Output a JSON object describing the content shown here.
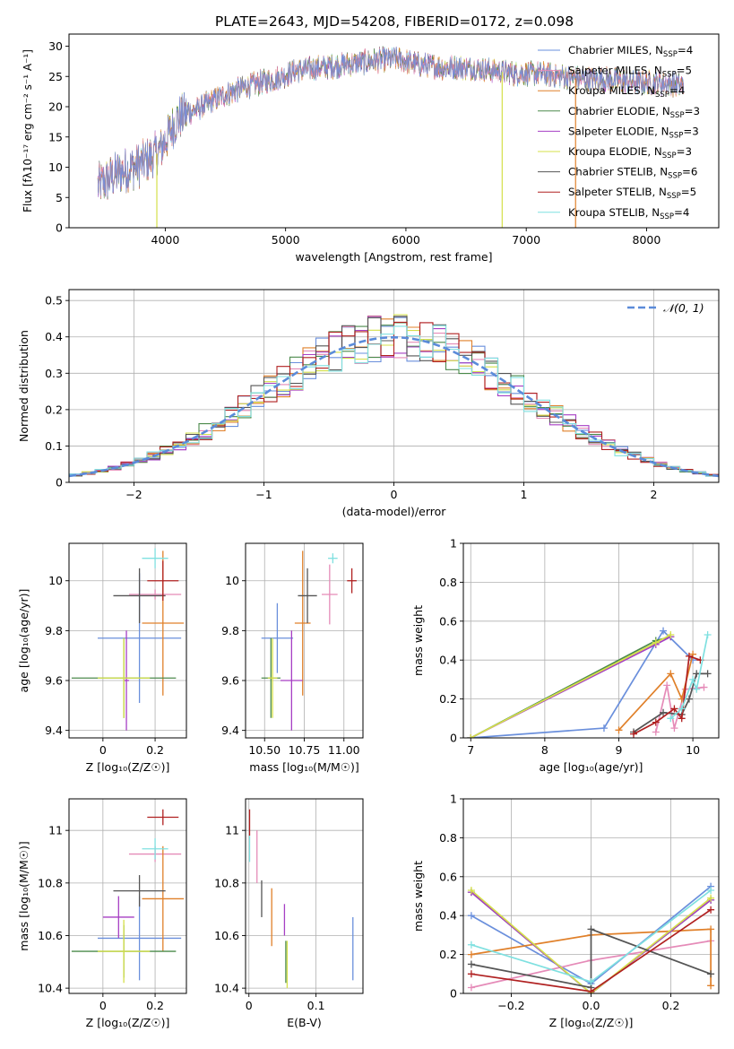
{
  "figure_title": "PLATE=2643, MJD=54208, FIBERID=0172, z=0.098",
  "colors": {
    "Chabrier MILES": "#6a8fdc",
    "Salpeter MILES": "#e58bb8",
    "Kroupa MILES": "#e0802a",
    "Chabrier ELODIE": "#4b8a4b",
    "Salpeter ELODIE": "#a63fc4",
    "Kroupa ELODIE": "#d4e04a",
    "Chabrier STELIB": "#555555",
    "Salpeter STELIB": "#b02020",
    "Kroupa STELIB": "#7fe0e0",
    "gaussian": "#5b8bd9"
  },
  "chart_data": [
    {
      "id": "spectrum",
      "type": "line",
      "xlabel": "wavelength [Angstrom, rest frame]",
      "ylabel": "Flux [fλ10⁻¹⁷ erg cm⁻² s⁻¹ A⁻¹]",
      "xlim": [
        3200,
        8600
      ],
      "ylim": [
        0,
        32
      ],
      "xticks": [
        4000,
        5000,
        6000,
        7000,
        8000
      ],
      "yticks": [
        0,
        5,
        10,
        15,
        20,
        25,
        30
      ],
      "grid": false,
      "legend_position": "top-right",
      "continuum": {
        "x": [
          3450,
          3600,
          3800,
          3950,
          4100,
          4300,
          4500,
          4700,
          4900,
          5100,
          5300,
          5500,
          5700,
          5900,
          6100,
          6300,
          6500,
          6700,
          6900,
          7100,
          7300,
          7500,
          7700,
          7900,
          8100,
          8300
        ],
        "y": [
          7,
          9,
          10.5,
          12.5,
          18,
          20,
          22,
          23.5,
          24.5,
          26,
          26.5,
          27,
          27.5,
          28,
          27,
          26.5,
          26.5,
          26,
          25.5,
          25.5,
          25,
          24.5,
          24.5,
          24,
          24,
          23.5
        ]
      },
      "series": [
        {
          "name": "Chabrier MILES, N$_{SSP}$=4",
          "label_main": "Chabrier MILES, N",
          "label_sub": "SSP",
          "label_tail": "=4"
        },
        {
          "name": "Salpeter MILES, N$_{SSP}$=5",
          "label_main": "Salpeter MILES, N",
          "label_sub": "SSP",
          "label_tail": "=5"
        },
        {
          "name": "Kroupa MILES, N$_{SSP}$=4",
          "label_main": "Kroupa MILES, N",
          "label_sub": "SSP",
          "label_tail": "=4"
        },
        {
          "name": "Chabrier ELODIE, N$_{SSP}$=3",
          "label_main": "Chabrier ELODIE, N",
          "label_sub": "SSP",
          "label_tail": "=3"
        },
        {
          "name": "Salpeter ELODIE, N$_{SSP}$=3",
          "label_main": "Salpeter ELODIE, N",
          "label_sub": "SSP",
          "label_tail": "=3"
        },
        {
          "name": "Kroupa ELODIE, N$_{SSP}$=3",
          "label_main": "Kroupa ELODIE, N",
          "label_sub": "SSP",
          "label_tail": "=3"
        },
        {
          "name": "Chabrier STELIB, N$_{SSP}$=6",
          "label_main": "Chabrier STELIB, N",
          "label_sub": "SSP",
          "label_tail": "=6"
        },
        {
          "name": "Salpeter STELIB, N$_{SSP}$=5",
          "label_main": "Salpeter STELIB, N",
          "label_sub": "SSP",
          "label_tail": "=5"
        },
        {
          "name": "Kroupa STELIB, N$_{SSP}$=4",
          "label_main": "Kroupa STELIB, N",
          "label_sub": "SSP",
          "label_tail": "=4"
        }
      ],
      "vertical_drops": [
        {
          "x": 3930,
          "color": "Kroupa ELODIE"
        },
        {
          "x": 6800,
          "color": "Kroupa ELODIE"
        },
        {
          "x": 7410,
          "color": "Kroupa MILES"
        }
      ]
    },
    {
      "id": "residuals",
      "type": "histogram",
      "xlabel": "(data-model)/error",
      "ylabel": "Normed distribution",
      "xlim": [
        -2.5,
        2.5
      ],
      "ylim": [
        0,
        0.53
      ],
      "xticks": [
        -2,
        -1,
        0,
        1,
        2
      ],
      "xtick_labels": [
        "−2",
        "−1",
        "0",
        "1",
        "2"
      ],
      "yticks": [
        0.0,
        0.1,
        0.2,
        0.3,
        0.4,
        0.5
      ],
      "grid": true,
      "bin_width": 0.1,
      "bin_start": -2.5,
      "gaussian_label": "𝒩(0, 1)",
      "legend_position": "top-right"
    },
    {
      "id": "age_vs_Z",
      "type": "errorbar",
      "xlabel": "Z [log₁₀(Z/Z☉)]",
      "ylabel": "age  [log₁₀(age/yr)]",
      "xlim": [
        -0.13,
        0.32
      ],
      "ylim": [
        9.37,
        10.15
      ],
      "xticks": [
        0.0,
        0.2
      ],
      "yticks": [
        9.4,
        9.6,
        9.8,
        10.0
      ],
      "grid": true,
      "points": [
        {
          "series": "Chabrier MILES",
          "x": 0.14,
          "xerr": 0.16,
          "y": 9.77,
          "yerr": 0.26
        },
        {
          "series": "Salpeter MILES",
          "x": 0.2,
          "xerr": 0.1,
          "y": 9.945,
          "yerr": 0.02
        },
        {
          "series": "Kroupa MILES",
          "x": 0.23,
          "xerr": 0.08,
          "y": 9.83,
          "yerr": 0.29
        },
        {
          "series": "Chabrier ELODIE",
          "x": 0.08,
          "xerr": 0.2,
          "y": 9.61,
          "yerr": 0.16
        },
        {
          "series": "Salpeter ELODIE",
          "x": 0.09,
          "xerr": 0.01,
          "y": 9.6,
          "yerr": 0.2
        },
        {
          "series": "Kroupa ELODIE",
          "x": 0.08,
          "xerr": 0.1,
          "y": 9.61,
          "yerr": 0.16
        },
        {
          "series": "Chabrier STELIB",
          "x": 0.14,
          "xerr": 0.1,
          "y": 9.94,
          "yerr": 0.11
        },
        {
          "series": "Salpeter STELIB",
          "x": 0.23,
          "xerr": 0.06,
          "y": 10.0,
          "yerr": 0.08
        },
        {
          "series": "Kroupa STELIB",
          "x": 0.2,
          "xerr": 0.05,
          "y": 10.09,
          "yerr": 0.04
        }
      ]
    },
    {
      "id": "age_vs_mass",
      "type": "errorbar",
      "xlabel": "mass [log₁₀(M/M☉)]",
      "ylabel": "",
      "xlim": [
        10.38,
        11.12
      ],
      "ylim": [
        9.37,
        10.15
      ],
      "xticks": [
        10.5,
        10.75,
        11.0
      ],
      "xtick_labels": [
        "10.50",
        "10.75",
        "11.00"
      ],
      "yticks": [
        9.4,
        9.6,
        9.8,
        10.0
      ],
      "grid": true,
      "points": [
        {
          "series": "Chabrier MILES",
          "x": 10.58,
          "xerr": 0.1,
          "y": 9.77,
          "yerr": 0.14
        },
        {
          "series": "Salpeter MILES",
          "x": 10.91,
          "xerr": 0.05,
          "y": 9.945,
          "yerr": 0.12
        },
        {
          "series": "Kroupa MILES",
          "x": 10.74,
          "xerr": 0.05,
          "y": 9.83,
          "yerr": 0.29
        },
        {
          "series": "Chabrier ELODIE",
          "x": 10.54,
          "xerr": 0.06,
          "y": 9.61,
          "yerr": 0.16
        },
        {
          "series": "Salpeter ELODIE",
          "x": 10.67,
          "xerr": 0.07,
          "y": 9.6,
          "yerr": 0.2
        },
        {
          "series": "Kroupa ELODIE",
          "x": 10.55,
          "xerr": 0.03,
          "y": 9.61,
          "yerr": 0.16
        },
        {
          "series": "Chabrier STELIB",
          "x": 10.77,
          "xerr": 0.06,
          "y": 9.94,
          "yerr": 0.11
        },
        {
          "series": "Salpeter STELIB",
          "x": 11.05,
          "xerr": 0.03,
          "y": 10.0,
          "yerr": 0.05
        },
        {
          "series": "Kroupa STELIB",
          "x": 10.93,
          "xerr": 0.03,
          "y": 10.09,
          "yerr": 0.02
        }
      ]
    },
    {
      "id": "massweight_vs_age",
      "type": "line",
      "xlabel": "age  [log₁₀(age/yr)]",
      "ylabel": "mass weight",
      "xlim": [
        6.9,
        10.35
      ],
      "ylim": [
        0,
        1.0
      ],
      "xticks": [
        7,
        8,
        9,
        10
      ],
      "yticks": [
        0.0,
        0.2,
        0.4,
        0.6,
        0.8,
        1.0
      ],
      "grid": true,
      "series": [
        {
          "series": "Chabrier MILES",
          "x": [
            7.0,
            8.8,
            9.6,
            10.0
          ],
          "y": [
            0.0,
            0.05,
            0.55,
            0.4
          ]
        },
        {
          "series": "Salpeter MILES",
          "x": [
            9.5,
            9.65,
            9.75,
            9.9,
            10.15
          ],
          "y": [
            0.03,
            0.27,
            0.05,
            0.25,
            0.26
          ]
        },
        {
          "series": "Kroupa MILES",
          "x": [
            9.0,
            9.7,
            9.85,
            10.0
          ],
          "y": [
            0.04,
            0.33,
            0.2,
            0.43
          ]
        },
        {
          "series": "Chabrier ELODIE",
          "x": [
            7.0,
            9.5,
            9.7
          ],
          "y": [
            0.0,
            0.5,
            0.52
          ]
        },
        {
          "series": "Salpeter ELODIE",
          "x": [
            7.0,
            9.5,
            9.7
          ],
          "y": [
            0.0,
            0.48,
            0.52
          ]
        },
        {
          "series": "Kroupa ELODIE",
          "x": [
            7.0,
            9.5,
            9.7
          ],
          "y": [
            0.0,
            0.49,
            0.53
          ]
        },
        {
          "series": "Chabrier STELIB",
          "x": [
            9.2,
            9.6,
            9.85,
            9.95,
            10.05,
            10.2
          ],
          "y": [
            0.03,
            0.13,
            0.12,
            0.2,
            0.33,
            0.33
          ]
        },
        {
          "series": "Salpeter STELIB",
          "x": [
            9.2,
            9.5,
            9.75,
            9.85,
            9.95,
            10.1
          ],
          "y": [
            0.02,
            0.08,
            0.15,
            0.1,
            0.42,
            0.4
          ]
        },
        {
          "series": "Kroupa STELIB",
          "x": [
            9.7,
            9.85,
            10.0,
            10.05,
            10.2
          ],
          "y": [
            0.1,
            0.15,
            0.3,
            0.25,
            0.53
          ]
        }
      ]
    },
    {
      "id": "mass_vs_Z",
      "type": "errorbar",
      "xlabel": "Z [log₁₀(Z/Z☉)]",
      "ylabel": "mass [log₁₀(M/M☉)]",
      "xlim": [
        -0.13,
        0.32
      ],
      "ylim": [
        10.38,
        11.12
      ],
      "xticks": [
        0.0,
        0.2
      ],
      "yticks": [
        10.4,
        10.6,
        10.8,
        11.0
      ],
      "grid": true,
      "points": [
        {
          "series": "Chabrier MILES",
          "x": 0.14,
          "xerr": 0.16,
          "y": 10.59,
          "yerr": 0.16
        },
        {
          "series": "Salpeter MILES",
          "x": 0.2,
          "xerr": 0.1,
          "y": 10.91,
          "yerr": 0.03
        },
        {
          "series": "Kroupa MILES",
          "x": 0.23,
          "xerr": 0.08,
          "y": 10.74,
          "yerr": 0.2
        },
        {
          "series": "Chabrier ELODIE",
          "x": 0.08,
          "xerr": 0.2,
          "y": 10.54,
          "yerr": 0.1
        },
        {
          "series": "Salpeter ELODIE",
          "x": 0.06,
          "xerr": 0.06,
          "y": 10.67,
          "yerr": 0.08
        },
        {
          "series": "Kroupa ELODIE",
          "x": 0.08,
          "xerr": 0.1,
          "y": 10.54,
          "yerr": 0.12
        },
        {
          "series": "Chabrier STELIB",
          "x": 0.14,
          "xerr": 0.1,
          "y": 10.77,
          "yerr": 0.06
        },
        {
          "series": "Salpeter STELIB",
          "x": 0.23,
          "xerr": 0.06,
          "y": 11.05,
          "yerr": 0.03
        },
        {
          "series": "Kroupa STELIB",
          "x": 0.2,
          "xerr": 0.05,
          "y": 10.93,
          "yerr": 0.04
        }
      ]
    },
    {
      "id": "mass_vs_EBV",
      "type": "errorbar",
      "xlabel": "E(B-V)",
      "ylabel": "",
      "xlim": [
        -0.005,
        0.17
      ],
      "ylim": [
        10.38,
        11.12
      ],
      "xticks": [
        0.0,
        0.1
      ],
      "yticks": [
        10.4,
        10.6,
        10.8,
        11.0
      ],
      "grid": true,
      "points": [
        {
          "series": "Chabrier MILES",
          "x": 0.155,
          "y": 10.55,
          "yerr": 0.12
        },
        {
          "series": "Salpeter MILES",
          "x": 0.012,
          "y": 10.9,
          "yerr": 0.1
        },
        {
          "series": "Kroupa MILES",
          "x": 0.034,
          "y": 10.67,
          "yerr": 0.11
        },
        {
          "series": "Chabrier ELODIE",
          "x": 0.055,
          "y": 10.5,
          "yerr": 0.08
        },
        {
          "series": "Salpeter ELODIE",
          "x": 0.053,
          "y": 10.66,
          "yerr": 0.06
        },
        {
          "series": "Kroupa ELODIE",
          "x": 0.057,
          "y": 10.49,
          "yerr": 0.09
        },
        {
          "series": "Chabrier STELIB",
          "x": 0.019,
          "y": 10.74,
          "yerr": 0.07
        },
        {
          "series": "Salpeter STELIB",
          "x": 0.001,
          "y": 11.03,
          "yerr": 0.05
        },
        {
          "series": "Kroupa STELIB",
          "x": 0.001,
          "y": 10.93,
          "yerr": 0.05
        }
      ]
    },
    {
      "id": "massweight_vs_Z",
      "type": "line",
      "xlabel": "Z [log₁₀(Z/Z☉)]",
      "ylabel": "mass weight",
      "xlim": [
        -0.32,
        0.32
      ],
      "ylim": [
        0,
        1.0
      ],
      "xticks": [
        -0.2,
        0.0,
        0.2
      ],
      "xtick_labels": [
        "−0.2",
        "0.0",
        "0.2"
      ],
      "yticks": [
        0.0,
        0.2,
        0.4,
        0.6,
        0.8,
        1.0
      ],
      "grid": true,
      "series": [
        {
          "series": "Chabrier MILES",
          "x": [
            -0.3,
            0.0,
            0.3
          ],
          "y": [
            0.4,
            0.05,
            0.55
          ]
        },
        {
          "series": "Salpeter MILES",
          "x": [
            -0.3,
            0.0,
            0.3
          ],
          "y": [
            0.03,
            0.17,
            0.27
          ]
        },
        {
          "series": "Kroupa MILES",
          "x": [
            -0.3,
            0.0,
            0.3,
            0.3
          ],
          "y": [
            0.2,
            0.3,
            0.33,
            0.04
          ]
        },
        {
          "series": "Chabrier ELODIE",
          "x": [
            -0.3,
            0.0,
            0.3
          ],
          "y": [
            0.52,
            0.0,
            0.48
          ]
        },
        {
          "series": "Salpeter ELODIE",
          "x": [
            -0.3,
            0.0,
            0.3
          ],
          "y": [
            0.52,
            0.0,
            0.48
          ]
        },
        {
          "series": "Kroupa ELODIE",
          "x": [
            -0.3,
            0.0,
            0.3
          ],
          "y": [
            0.53,
            0.0,
            0.49
          ]
        },
        {
          "series": "Chabrier STELIB",
          "x": [
            -0.3,
            0.0,
            0.0,
            0.3
          ],
          "y": [
            0.15,
            0.03,
            0.33,
            0.1
          ]
        },
        {
          "series": "Salpeter STELIB",
          "x": [
            -0.3,
            0.0,
            0.3
          ],
          "y": [
            0.1,
            0.01,
            0.43
          ]
        },
        {
          "series": "Kroupa STELIB",
          "x": [
            -0.3,
            0.0,
            0.3
          ],
          "y": [
            0.25,
            0.06,
            0.53
          ]
        }
      ]
    }
  ]
}
